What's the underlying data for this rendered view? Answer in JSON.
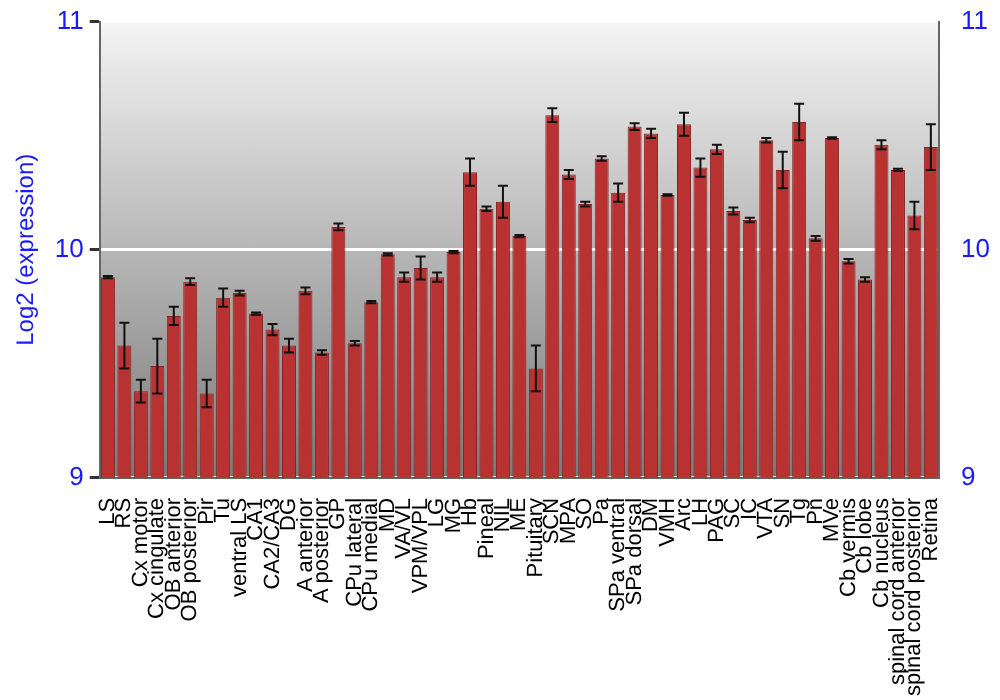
{
  "chart_data": {
    "type": "bar",
    "ylabel": "Log2 (expression)",
    "categories": [
      "LS",
      "RS",
      "Cx motor",
      "Cx cingulate",
      "OB anterior",
      "OB posterior",
      "Pir",
      "Tu",
      "ventral LS",
      "CA1",
      "CA2/CA3",
      "DG",
      "A anterior",
      "A posterior",
      "GP",
      "CPu lateral",
      "CPu medial",
      "MD",
      "VA/VL",
      "VPM/VPL",
      "LG",
      "MG",
      "Hb",
      "Pineal",
      "NIL",
      "ME",
      "Pituitary",
      "SCN",
      "MPA",
      "SO",
      "Pa",
      "SPa ventral",
      "SPa dorsal",
      "DM",
      "VMH",
      "Arc",
      "LH",
      "PAG",
      "SC",
      "IC",
      "VTA",
      "SN",
      "Tg",
      "Pn",
      "MVe",
      "Cb vermis",
      "Cb lobe",
      "Cb nucleus",
      "spinal cord anterior",
      "spinal cord posterior",
      "Retina"
    ],
    "series": [
      {
        "color": "#b83232",
        "values": [
          9.88,
          9.58,
          9.38,
          9.49,
          9.71,
          9.86,
          9.37,
          9.79,
          9.81,
          9.72,
          9.65,
          9.58,
          9.82,
          9.55,
          10.1,
          9.59,
          9.77,
          9.98,
          9.88,
          9.92,
          9.88,
          9.99,
          10.34,
          10.18,
          10.21,
          10.06,
          9.48,
          10.59,
          10.33,
          10.2,
          10.4,
          10.25,
          10.54,
          10.51,
          10.24,
          10.55,
          10.36,
          10.44,
          10.17,
          10.13,
          10.48,
          10.35,
          10.56,
          10.05,
          10.49,
          9.95,
          9.87,
          10.46,
          10.35,
          10.15,
          10.45
        ],
        "errors": [
          0.005,
          0.1,
          0.05,
          0.12,
          0.04,
          0.015,
          0.06,
          0.04,
          0.01,
          0.005,
          0.025,
          0.03,
          0.015,
          0.01,
          0.015,
          0.01,
          0.005,
          0.005,
          0.02,
          0.05,
          0.02,
          0.005,
          0.06,
          0.01,
          0.07,
          0.005,
          0.1,
          0.03,
          0.02,
          0.01,
          0.01,
          0.04,
          0.015,
          0.02,
          0.003,
          0.05,
          0.04,
          0.02,
          0.015,
          0.01,
          0.01,
          0.08,
          0.08,
          0.01,
          0.003,
          0.01,
          0.01,
          0.02,
          0.005,
          0.06,
          0.1
        ]
      }
    ],
    "ylim": [
      9,
      11
    ],
    "yticks": [
      9,
      10,
      11
    ],
    "y2lim": [
      9,
      11
    ],
    "y2ticks": [
      9,
      10,
      11
    ],
    "grid": "y",
    "legend": false
  }
}
